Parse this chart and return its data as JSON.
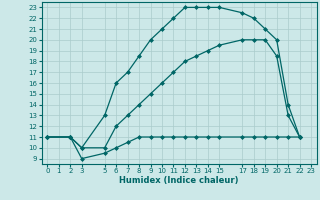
{
  "xlabel": "Humidex (Indice chaleur)",
  "bg_color": "#cce8e8",
  "line_color": "#006666",
  "grid_color": "#aacccc",
  "xlim": [
    -0.5,
    23.5
  ],
  "ylim": [
    8.5,
    23.5
  ],
  "xticks": [
    0,
    1,
    2,
    3,
    5,
    6,
    7,
    8,
    9,
    10,
    11,
    12,
    13,
    14,
    15,
    17,
    18,
    19,
    20,
    21,
    22,
    23
  ],
  "yticks": [
    9,
    10,
    11,
    12,
    13,
    14,
    15,
    16,
    17,
    18,
    19,
    20,
    21,
    22,
    23
  ],
  "line1_x": [
    0,
    2,
    3,
    5,
    6,
    7,
    8,
    9,
    10,
    11,
    12,
    13,
    14,
    15,
    17,
    18,
    19,
    20,
    21,
    22
  ],
  "line1_y": [
    11,
    11,
    10,
    13,
    16,
    17,
    18.5,
    20,
    21,
    22,
    23,
    23,
    23,
    23,
    22.5,
    22,
    21,
    20,
    14,
    11
  ],
  "line2_x": [
    0,
    2,
    3,
    5,
    6,
    7,
    8,
    9,
    10,
    11,
    12,
    13,
    14,
    15,
    17,
    18,
    19,
    20,
    21,
    22
  ],
  "line2_y": [
    11,
    11,
    10,
    10,
    12,
    13,
    14,
    15,
    16,
    17,
    18,
    18.5,
    19,
    19.5,
    20,
    20,
    20,
    18.5,
    13,
    11
  ],
  "line3_x": [
    0,
    2,
    3,
    5,
    6,
    7,
    8,
    9,
    10,
    11,
    12,
    13,
    14,
    15,
    17,
    18,
    19,
    20,
    21,
    22
  ],
  "line3_y": [
    11,
    11,
    9,
    9.5,
    10,
    10.5,
    11,
    11,
    11,
    11,
    11,
    11,
    11,
    11,
    11,
    11,
    11,
    11,
    11,
    11
  ],
  "marker": "D",
  "markersize": 2,
  "linewidth": 0.9,
  "tick_fontsize": 5,
  "xlabel_fontsize": 6
}
